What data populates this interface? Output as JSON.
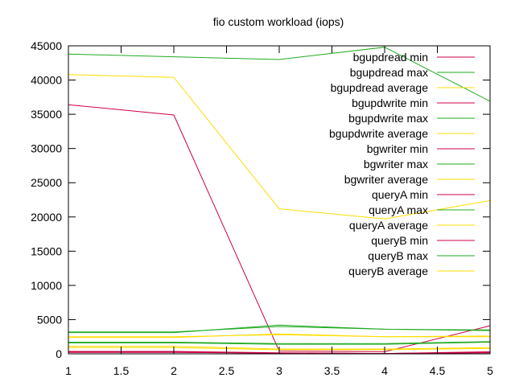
{
  "chart_data": {
    "type": "line",
    "title": "fio custom workload (iops)",
    "xlabel": "",
    "ylabel": "",
    "xlim": [
      1,
      5
    ],
    "ylim": [
      0,
      45000
    ],
    "x": [
      1,
      2,
      3,
      4,
      5
    ],
    "x_ticks": [
      1,
      1.5,
      2,
      2.5,
      3,
      3.5,
      4,
      4.5,
      5
    ],
    "x_tick_labels": [
      "1",
      "1.5",
      "2",
      "2.5",
      "3",
      "3.5",
      "4",
      "4.5",
      "5"
    ],
    "y_ticks": [
      0,
      5000,
      10000,
      15000,
      20000,
      25000,
      30000,
      35000,
      40000,
      45000
    ],
    "y_tick_labels": [
      "0",
      "5000",
      "10000",
      "15000",
      "20000",
      "25000",
      "30000",
      "35000",
      "40000",
      "45000"
    ],
    "grid": false,
    "legend_position": "top-right",
    "colors": {
      "min": "#cc0044",
      "max": "#22aa22",
      "average": "#ffdd00"
    },
    "series": [
      {
        "name": "bgupdread min",
        "color": "#cc0044",
        "values": [
          36400,
          34900,
          400,
          300,
          4100
        ]
      },
      {
        "name": "bgupdread max",
        "color": "#22aa22",
        "values": [
          43800,
          43400,
          43000,
          44800,
          36900
        ]
      },
      {
        "name": "bgupdread average",
        "color": "#ffdd00",
        "values": [
          40800,
          40400,
          21200,
          19700,
          22400
        ]
      },
      {
        "name": "bgupdwrite min",
        "color": "#cc0044",
        "values": [
          350,
          350,
          150,
          50,
          300
        ]
      },
      {
        "name": "bgupdwrite max",
        "color": "#22aa22",
        "values": [
          3100,
          3100,
          4200,
          3600,
          3500
        ]
      },
      {
        "name": "bgupdwrite average",
        "color": "#ffdd00",
        "values": [
          2400,
          2400,
          2900,
          2500,
          2500
        ]
      },
      {
        "name": "bgwriter min",
        "color": "#cc0044",
        "values": [
          300,
          300,
          100,
          50,
          200
        ]
      },
      {
        "name": "bgwriter max",
        "color": "#22aa22",
        "values": [
          3200,
          3200,
          4000,
          3600,
          3400
        ]
      },
      {
        "name": "bgwriter average",
        "color": "#ffdd00",
        "values": [
          2500,
          2500,
          2800,
          2500,
          2600
        ]
      },
      {
        "name": "queryA min",
        "color": "#cc0044",
        "values": [
          200,
          200,
          100,
          50,
          150
        ]
      },
      {
        "name": "queryA max",
        "color": "#22aa22",
        "values": [
          1700,
          1700,
          1500,
          1500,
          1800
        ]
      },
      {
        "name": "queryA average",
        "color": "#ffdd00",
        "values": [
          1100,
          1100,
          700,
          700,
          900
        ]
      },
      {
        "name": "queryB min",
        "color": "#cc0044",
        "values": [
          250,
          250,
          100,
          50,
          200
        ]
      },
      {
        "name": "queryB max",
        "color": "#22aa22",
        "values": [
          1600,
          1600,
          1400,
          1400,
          1700
        ]
      },
      {
        "name": "queryB average",
        "color": "#ffdd00",
        "values": [
          900,
          900,
          600,
          600,
          800
        ]
      }
    ]
  }
}
